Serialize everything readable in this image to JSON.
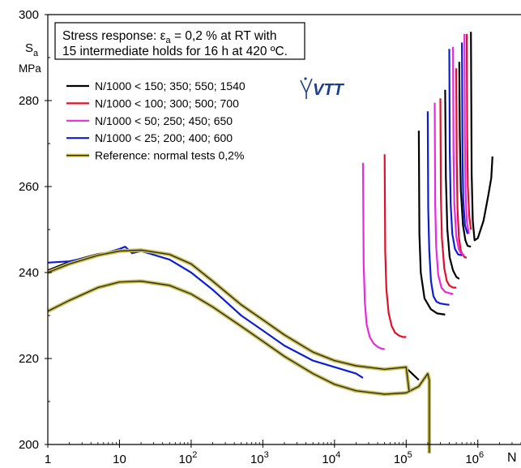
{
  "chart_data": {
    "type": "line",
    "title": "",
    "y_axis_label": "S",
    "y_axis_label_sub": "a",
    "y_axis_unit": "MPa",
    "x_axis_label": "N",
    "x_scale": "log",
    "xlim": [
      1,
      4000000
    ],
    "ylim": [
      200,
      300
    ],
    "y_ticks": [
      200,
      220,
      240,
      260,
      280,
      300
    ],
    "x_ticks": [
      {
        "value": 1,
        "base": "1",
        "exp": ""
      },
      {
        "value": 10,
        "base": "10",
        "exp": ""
      },
      {
        "value": 100,
        "base": "10",
        "exp": "2"
      },
      {
        "value": 1000,
        "base": "10",
        "exp": "3"
      },
      {
        "value": 10000,
        "base": "10",
        "exp": "4"
      },
      {
        "value": 100000,
        "base": "10",
        "exp": "5"
      },
      {
        "value": 1000000,
        "base": "10",
        "exp": "6"
      }
    ],
    "grid": false,
    "annotation": {
      "line1_pre": "Stress response:  ε",
      "line1_sub": "a",
      "line1_post": " = 0,2 % at RT with",
      "line2": "15 intermediate holds for 16 h at 420 ºC."
    },
    "legend_placement": "top-left",
    "series": [
      {
        "name": "N/1000 < 150; 350; 550; 1540",
        "color": "#000000",
        "segments": [
          {
            "x": [
              1,
              2,
              5,
              10,
              20,
              50,
              100,
              200,
              500,
              1000,
              2000,
              5000,
              10000,
              20000,
              50000,
              100000,
              150000
            ],
            "y": [
              240.5,
              242.5,
              244.3,
              245.0,
              245.3,
              244.3,
              242.0,
              238.0,
              232.5,
              229.0,
              225.5,
              221.5,
              219.5,
              218.2,
              217.5,
              217.8,
              215.0
            ]
          },
          {
            "x": [
              150000,
              153000,
              160000,
              180000,
              220000,
              270000,
              350000
            ],
            "y": [
              273.0,
              249.0,
              240.0,
              234.0,
              231.5,
              230.5,
              230.2
            ]
          },
          {
            "x": [
              350000,
              358000,
              375000,
              405000,
              450000,
              500000,
              550000
            ],
            "y": [
              282.5,
              262.0,
              250.0,
              243.5,
              240.5,
              239.0,
              238.5
            ]
          },
          {
            "x": [
              550000,
              560000,
              580000,
              620000,
              670000,
              720000,
              800000
            ],
            "y": [
              289.0,
              272.0,
              259.0,
              251.0,
              247.5,
              246.2,
              246.0
            ]
          },
          {
            "x": [
              800000,
              820000,
              850000,
              900000,
              1000000,
              1200000,
              1400000,
              1540000,
              1600000
            ],
            "y": [
              296.0,
              263.0,
              252.0,
              247.5,
              248.0,
              252.0,
              258.0,
              262.0,
              267.0
            ]
          }
        ]
      },
      {
        "name": "N/1000 < 100; 300; 500; 700",
        "color": "#e0102a",
        "segments": [
          {
            "x": [
              50000,
              51000,
              53000,
              57000,
              63000,
              70000,
              80000,
              90000,
              100000
            ],
            "y": [
              267.5,
              245.0,
              236.0,
              230.5,
              227.5,
              226.0,
              225.3,
              225.0,
              225.0
            ]
          },
          {
            "x": [
              300000,
              305000,
              315000,
              340000,
              370000,
              400000,
              450000,
              500000
            ],
            "y": [
              280.5,
              258.0,
              248.0,
              241.0,
              238.0,
              237.0,
              236.5,
              236.5
            ]
          },
          {
            "x": [
              500000,
              508000,
              520000,
              545000,
              580000,
              620000,
              660000,
              700000
            ],
            "y": [
              287.5,
              266.0,
              255.0,
              248.0,
              245.0,
              244.0,
              243.5,
              243.5
            ]
          },
          {
            "x": [
              700000,
              710000,
              725000,
              760000,
              800000
            ],
            "y": [
              295.5,
              272.0,
              260.0,
              253.0,
              250.0
            ]
          }
        ]
      },
      {
        "name": "N/1000 <   50; 250; 450; 650",
        "color": "#ea28e0",
        "segments": [
          {
            "x": [
              25000,
              25500,
              26500,
              28000,
              31000,
              35000,
              40000,
              45000,
              50000
            ],
            "y": [
              265.5,
              242.0,
              233.0,
              228.0,
              225.0,
              223.5,
              222.7,
              222.3,
              222.2
            ]
          },
          {
            "x": [
              250000,
              254000,
              262000,
              280000,
              310000,
              350000,
              400000,
              450000
            ],
            "y": [
              279.5,
              256.0,
              246.0,
              239.5,
              236.5,
              235.5,
              235.2,
              235.0
            ]
          },
          {
            "x": [
              450000,
              458000,
              470000,
              500000,
              540000,
              580000,
              620000,
              650000
            ],
            "y": [
              292.5,
              268.0,
              256.0,
              248.5,
              245.5,
              244.5,
              244.2,
              244.0
            ]
          },
          {
            "x": [
              650000,
              660000,
              675000,
              700000,
              750000
            ],
            "y": [
              295.5,
              270.0,
              259.0,
              252.0,
              249.0
            ]
          }
        ]
      },
      {
        "name": "N/1000 <   25; 200; 400; 600",
        "color": "#0a1ed6",
        "segments": [
          {
            "x": [
              1,
              2,
              5,
              10,
              12,
              15,
              20,
              50,
              100,
              200,
              500,
              1000,
              2000,
              5000,
              10000,
              20000,
              25000
            ],
            "y": [
              242.3,
              242.6,
              244.0,
              245.5,
              246.0,
              244.5,
              245.0,
              243.0,
              240.0,
              236.0,
              230.0,
              226.5,
              223.0,
              219.5,
              218.0,
              216.5,
              215.5
            ]
          },
          {
            "x": [
              200000,
              203000,
              210000,
              222000,
              240000,
              265000,
              300000,
              350000,
              400000
            ],
            "y": [
              277.5,
              255.0,
              245.0,
              238.0,
              234.5,
              233.2,
              232.8,
              232.6,
              232.5
            ]
          },
          {
            "x": [
              400000,
              406000,
              418000,
              440000,
              480000,
              530000,
              600000
            ],
            "y": [
              292.0,
              268.0,
              256.0,
              249.0,
              245.5,
              244.2,
              244.0
            ]
          },
          {
            "x": [
              600000,
              610000,
              625000,
              660000,
              720000
            ],
            "y": [
              293.5,
              268.0,
              257.0,
              251.0,
              249.0
            ]
          }
        ]
      },
      {
        "name": "Reference: normal tests 0,2%",
        "color": "#1e1e1e",
        "band": "#c8bc4a",
        "segments": [
          {
            "x": [
              1,
              2,
              5,
              10,
              20,
              50,
              100,
              200,
              500,
              1000,
              2000,
              5000,
              10000,
              20000,
              50000,
              100000,
              150000,
              200000,
              210000,
              210001
            ],
            "y": [
              231.0,
              233.5,
              236.5,
              237.8,
              238.0,
              237.0,
              235.0,
              232.0,
              227.5,
              224.0,
              220.5,
              216.5,
              214.0,
              212.5,
              211.7,
              212.0,
              213.5,
              216.5,
              215.0,
              198.0
            ]
          },
          {
            "x": [
              1,
              2,
              5,
              10,
              20,
              50,
              100,
              200,
              500,
              1000,
              2000,
              5000,
              10000,
              20000,
              50000,
              100000,
              110000
            ],
            "y": [
              240.0,
              242.0,
              244.0,
              245.0,
              245.2,
              244.2,
              242.0,
              238.0,
              232.5,
              229.0,
              225.5,
              221.5,
              219.5,
              218.3,
              217.5,
              218.0,
              212.5
            ]
          }
        ]
      }
    ],
    "logo": {
      "text": "VTT",
      "color": "#1a3f8f"
    }
  }
}
